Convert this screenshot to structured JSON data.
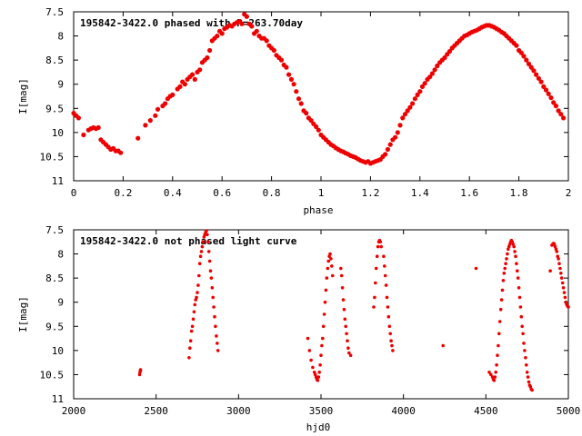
{
  "colors": {
    "points": "#ee0000",
    "axes": "#000000",
    "background": "#ffffff"
  },
  "chart_data": [
    {
      "type": "scatter",
      "title": "195842-3422.0 phased with P=263.70day",
      "xlabel": "phase",
      "ylabel": "I[mag]",
      "xlim": [
        0,
        2
      ],
      "ylim": [
        7.5,
        11
      ],
      "y_inverted": true,
      "grid": false,
      "x_ticks": [
        "0",
        "0.2",
        "0.4",
        "0.6",
        "0.8",
        "1",
        "1.2",
        "1.4",
        "1.6",
        "1.8",
        "2"
      ],
      "y_ticks": [
        "7.5",
        "8",
        "8.5",
        "9",
        "9.5",
        "10",
        "10.5",
        "11"
      ],
      "series": [
        {
          "marker": "filled-circle",
          "x": [
            0.0,
            0.01,
            0.02,
            0.04,
            0.06,
            0.07,
            0.08,
            0.09,
            0.1,
            0.11,
            0.12,
            0.13,
            0.14,
            0.15,
            0.16,
            0.17,
            0.18,
            0.19,
            0.26,
            0.29,
            0.31,
            0.33,
            0.34,
            0.36,
            0.37,
            0.38,
            0.39,
            0.4,
            0.42,
            0.43,
            0.44,
            0.45,
            0.46,
            0.47,
            0.48,
            0.49,
            0.5,
            0.51,
            0.52,
            0.53,
            0.54,
            0.55,
            0.56,
            0.57,
            0.58,
            0.59,
            0.6,
            0.61,
            0.62,
            0.63,
            0.64,
            0.65,
            0.66,
            0.67,
            0.68,
            0.69,
            0.7,
            0.71,
            0.72,
            0.73,
            0.74,
            0.75,
            0.76,
            0.77,
            0.78,
            0.79,
            0.8,
            0.81,
            0.82,
            0.83,
            0.84,
            0.85,
            0.86,
            0.87,
            0.88,
            0.89,
            0.9,
            0.91,
            0.92,
            0.93,
            0.94,
            0.95,
            0.96,
            0.97,
            0.98,
            0.99,
            1.0,
            1.01,
            1.02,
            1.03,
            1.04,
            1.05,
            1.06,
            1.07,
            1.08,
            1.09,
            1.1,
            1.11,
            1.12,
            1.13,
            1.14,
            1.15,
            1.16,
            1.17,
            1.18,
            1.19,
            1.2,
            1.21,
            1.22,
            1.23,
            1.24,
            1.25,
            1.26,
            1.27,
            1.28,
            1.29,
            1.3,
            1.31,
            1.32,
            1.33,
            1.34,
            1.35,
            1.36,
            1.37,
            1.38,
            1.39,
            1.4,
            1.41,
            1.42,
            1.43,
            1.44,
            1.45,
            1.46,
            1.47,
            1.48,
            1.49,
            1.5,
            1.51,
            1.52,
            1.53,
            1.54,
            1.55,
            1.56,
            1.57,
            1.58,
            1.59,
            1.6,
            1.61,
            1.62,
            1.63,
            1.64,
            1.65,
            1.66,
            1.67,
            1.68,
            1.69,
            1.7,
            1.71,
            1.72,
            1.73,
            1.74,
            1.75,
            1.76,
            1.77,
            1.78,
            1.79,
            1.8,
            1.81,
            1.82,
            1.83,
            1.84,
            1.85,
            1.86,
            1.87,
            1.88,
            1.89,
            1.9,
            1.91,
            1.92,
            1.93,
            1.94,
            1.95,
            1.96,
            1.97,
            1.98
          ],
          "y": [
            9.6,
            9.65,
            9.7,
            10.05,
            9.95,
            9.92,
            9.9,
            9.92,
            9.9,
            10.15,
            10.2,
            10.25,
            10.3,
            10.35,
            10.33,
            10.38,
            10.38,
            10.42,
            10.12,
            9.85,
            9.75,
            9.65,
            9.52,
            9.45,
            9.4,
            9.3,
            9.25,
            9.22,
            9.1,
            9.05,
            8.95,
            9.0,
            8.9,
            8.85,
            8.8,
            8.9,
            8.75,
            8.7,
            8.55,
            8.5,
            8.45,
            8.3,
            8.1,
            8.05,
            8.0,
            7.9,
            7.95,
            7.85,
            7.82,
            7.78,
            7.8,
            7.75,
            7.72,
            7.7,
            7.75,
            7.55,
            7.6,
            7.75,
            7.8,
            7.95,
            7.9,
            8.0,
            8.05,
            8.05,
            8.1,
            8.2,
            8.25,
            8.3,
            8.4,
            8.45,
            8.5,
            8.6,
            8.65,
            8.8,
            8.9,
            9.0,
            9.15,
            9.3,
            9.4,
            9.55,
            9.6,
            9.7,
            9.75,
            9.82,
            9.88,
            9.95,
            10.05,
            10.1,
            10.15,
            10.2,
            10.25,
            10.28,
            10.32,
            10.35,
            10.38,
            10.4,
            10.43,
            10.45,
            10.48,
            10.5,
            10.52,
            10.55,
            10.58,
            10.6,
            10.62,
            10.6,
            10.64,
            10.62,
            10.6,
            10.58,
            10.56,
            10.5,
            10.45,
            10.35,
            10.25,
            10.15,
            10.1,
            10.0,
            9.85,
            9.7,
            9.62,
            9.55,
            9.48,
            9.4,
            9.3,
            9.22,
            9.15,
            9.05,
            8.98,
            8.9,
            8.85,
            8.78,
            8.7,
            8.62,
            8.55,
            8.5,
            8.45,
            8.38,
            8.32,
            8.25,
            8.2,
            8.15,
            8.1,
            8.05,
            8.0,
            7.98,
            7.95,
            7.92,
            7.9,
            7.88,
            7.85,
            7.82,
            7.8,
            7.78,
            7.78,
            7.8,
            7.82,
            7.85,
            7.88,
            7.92,
            7.95,
            8.0,
            8.05,
            8.1,
            8.15,
            8.2,
            8.3,
            8.35,
            8.42,
            8.5,
            8.58,
            8.65,
            8.72,
            8.8,
            8.88,
            8.95,
            9.05,
            9.12,
            9.2,
            9.28,
            9.38,
            9.45,
            9.55,
            9.62,
            9.7
          ]
        }
      ]
    },
    {
      "type": "scatter",
      "title": "195842-3422.0 not phased light curve",
      "xlabel": "hjd0",
      "ylabel": "I[mag]",
      "xlim": [
        2000,
        5000
      ],
      "ylim": [
        7.5,
        11
      ],
      "y_inverted": true,
      "grid": false,
      "x_ticks": [
        "2000",
        "2500",
        "3000",
        "3500",
        "4000",
        "4500",
        "5000"
      ],
      "y_ticks": [
        "7.5",
        "8",
        "8.5",
        "9",
        "9.5",
        "10",
        "10.5",
        "11"
      ],
      "series": [
        {
          "marker": "filled-circle",
          "x": [
            2400,
            2402,
            2404,
            2406,
            2700,
            2705,
            2710,
            2715,
            2720,
            2725,
            2730,
            2735,
            2740,
            2745,
            2750,
            2755,
            2760,
            2765,
            2770,
            2775,
            2780,
            2785,
            2790,
            2795,
            2800,
            2805,
            2810,
            2815,
            2820,
            2825,
            2830,
            2835,
            2840,
            2845,
            2850,
            2855,
            2860,
            2865,
            2870,
            2875,
            3420,
            3430,
            3440,
            3450,
            3460,
            3465,
            3470,
            3475,
            3480,
            3485,
            3490,
            3495,
            3500,
            3505,
            3510,
            3515,
            3520,
            3525,
            3530,
            3535,
            3540,
            3545,
            3550,
            3555,
            3560,
            3565,
            3570,
            3620,
            3625,
            3630,
            3635,
            3640,
            3645,
            3650,
            3655,
            3660,
            3665,
            3670,
            3680,
            3820,
            3825,
            3830,
            3835,
            3840,
            3845,
            3850,
            3855,
            3860,
            3865,
            3880,
            3885,
            3890,
            3895,
            3900,
            3905,
            3910,
            3915,
            3920,
            3925,
            3930,
            3935,
            4240,
            4440,
            4520,
            4530,
            4540,
            4545,
            4550,
            4555,
            4560,
            4565,
            4570,
            4575,
            4580,
            4585,
            4590,
            4595,
            4600,
            4605,
            4610,
            4615,
            4620,
            4625,
            4630,
            4635,
            4640,
            4645,
            4650,
            4655,
            4660,
            4665,
            4670,
            4675,
            4680,
            4685,
            4690,
            4695,
            4700,
            4705,
            4710,
            4715,
            4720,
            4725,
            4730,
            4735,
            4740,
            4745,
            4750,
            4755,
            4760,
            4765,
            4770,
            4775,
            4780,
            4890,
            4900,
            4905,
            4910,
            4915,
            4920,
            4925,
            4930,
            4935,
            4940,
            4945,
            4950,
            4955,
            4960,
            4965,
            4970,
            4975,
            4980,
            4985,
            4990,
            4995,
            5000
          ],
          "y": [
            10.5,
            10.45,
            10.42,
            10.4,
            10.15,
            9.95,
            9.8,
            9.6,
            9.5,
            9.35,
            9.2,
            9.05,
            8.95,
            8.9,
            8.8,
            8.65,
            8.45,
            8.2,
            8.05,
            7.95,
            7.85,
            7.75,
            7.65,
            7.6,
            7.55,
            7.52,
            7.6,
            7.75,
            7.95,
            8.15,
            8.35,
            8.5,
            8.7,
            8.9,
            9.1,
            9.3,
            9.5,
            9.7,
            9.85,
            10.0,
            9.75,
            10.0,
            10.2,
            10.35,
            10.45,
            10.5,
            10.55,
            10.6,
            10.62,
            10.55,
            10.45,
            10.3,
            10.1,
            9.9,
            9.75,
            9.5,
            9.25,
            9.0,
            8.75,
            8.5,
            8.3,
            8.15,
            8.05,
            8.0,
            8.1,
            8.25,
            8.45,
            8.3,
            8.45,
            8.7,
            8.95,
            9.15,
            9.35,
            9.5,
            9.65,
            9.8,
            9.95,
            10.05,
            10.1,
            9.1,
            8.9,
            8.6,
            8.3,
            8.05,
            7.85,
            7.75,
            7.72,
            7.75,
            7.85,
            8.05,
            8.25,
            8.45,
            8.65,
            8.9,
            9.1,
            9.3,
            9.5,
            9.65,
            9.8,
            9.9,
            10.0,
            9.9,
            8.3,
            10.45,
            10.5,
            10.55,
            10.6,
            10.62,
            10.55,
            10.45,
            10.3,
            10.1,
            9.9,
            9.65,
            9.4,
            9.15,
            8.95,
            8.75,
            8.55,
            8.4,
            8.3,
            8.2,
            8.1,
            8.0,
            7.9,
            7.85,
            7.8,
            7.75,
            7.72,
            7.75,
            7.8,
            7.85,
            7.95,
            8.05,
            8.2,
            8.35,
            8.5,
            8.7,
            8.9,
            9.1,
            9.3,
            9.5,
            9.65,
            9.85,
            10.0,
            10.15,
            10.3,
            10.45,
            10.55,
            10.65,
            10.72,
            10.75,
            10.8,
            10.82,
            8.35,
            7.82,
            7.8,
            7.78,
            7.8,
            7.85,
            7.9,
            7.95,
            8.05,
            8.1,
            8.2,
            8.3,
            8.4,
            8.5,
            8.6,
            8.7,
            8.8,
            8.9,
            9.0,
            9.05,
            9.08,
            9.1
          ]
        }
      ]
    }
  ]
}
